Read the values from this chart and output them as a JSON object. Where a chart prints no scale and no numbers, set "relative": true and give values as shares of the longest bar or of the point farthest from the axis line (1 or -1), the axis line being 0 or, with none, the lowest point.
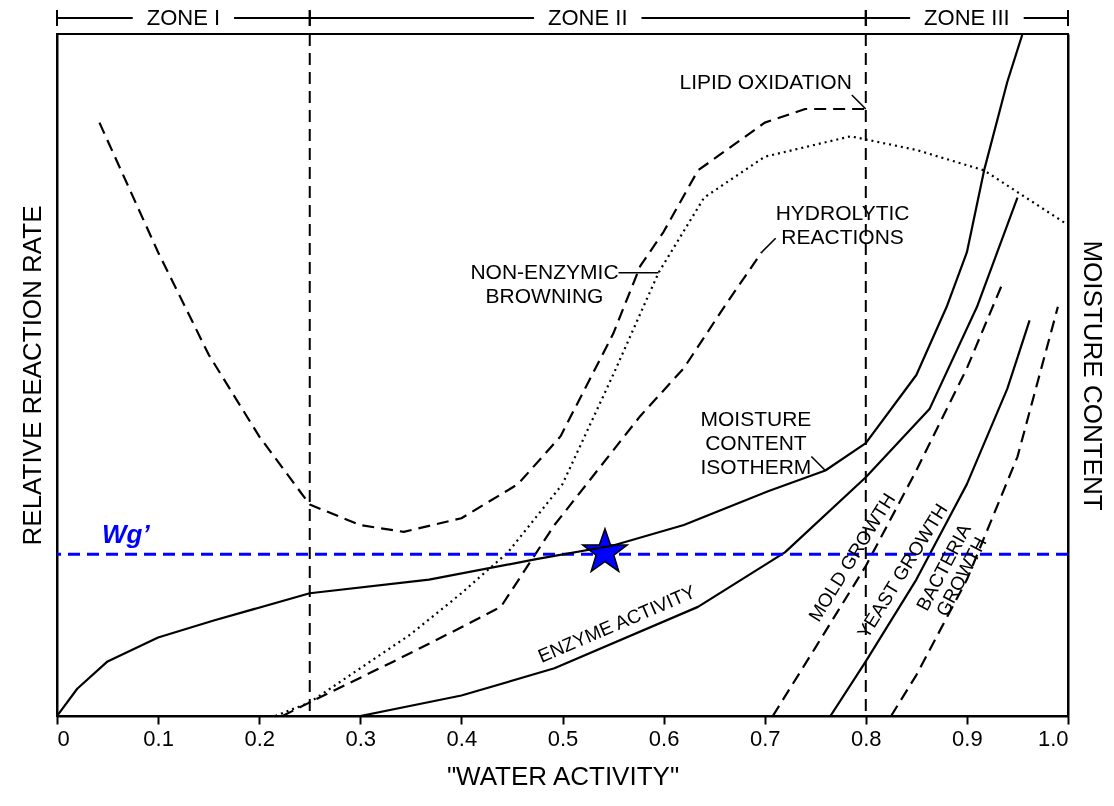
{
  "chart_data": {
    "type": "line",
    "relative": true,
    "xlabel": "\"WATER ACTIVITY\"",
    "ylabel": "RELATIVE REACTION RATE",
    "y2label": "MOISTURE CONTENT",
    "xlim": [
      0,
      1.0
    ],
    "xticks": [
      0,
      0.1,
      0.2,
      0.3,
      0.4,
      0.5,
      0.6,
      0.7,
      0.8,
      0.9,
      {
        "value": 1,
        "label": "1.0"
      }
    ],
    "grid": false,
    "series": [
      {
        "axis": "y2",
        "color": "#000000",
        "line_style": "solid",
        "x": [
          0,
          0.02,
          0.05,
          0.1,
          0.155,
          0.25,
          0.368,
          0.474,
          0.55,
          0.62,
          0.704,
          0.76,
          0.8,
          0.85,
          0.88,
          0.9,
          0.917,
          0.94,
          0.955
        ],
        "values": [
          0,
          0.04,
          0.08,
          0.115,
          0.14,
          0.18,
          0.2,
          0.23,
          0.25,
          0.28,
          0.33,
          0.36,
          0.4,
          0.5,
          0.6,
          0.68,
          0.8,
          0.93,
          1.0
        ]
      },
      {
        "color": "#000000",
        "line_style": "dashed",
        "x": [
          0.042,
          0.1,
          0.15,
          0.2,
          0.25,
          0.3,
          0.343,
          0.4,
          0.456,
          0.498,
          0.55,
          0.577,
          0.6,
          0.634,
          0.7,
          0.74,
          0.8
        ],
        "values": [
          0.87,
          0.68,
          0.53,
          0.41,
          0.31,
          0.28,
          0.27,
          0.29,
          0.34,
          0.41,
          0.56,
          0.66,
          0.71,
          0.8,
          0.87,
          0.89,
          0.89
        ]
      },
      {
        "color": "#000000",
        "line_style": "dotted",
        "x": [
          0.216,
          0.25,
          0.3,
          0.35,
          0.4,
          0.446,
          0.5,
          0.55,
          0.595,
          0.64,
          0.7,
          0.785,
          0.85,
          0.917,
          1.0
        ],
        "values": [
          0,
          0.02,
          0.07,
          0.12,
          0.18,
          0.24,
          0.34,
          0.5,
          0.65,
          0.76,
          0.82,
          0.85,
          0.83,
          0.8,
          0.72
        ]
      },
      {
        "color": "#000000",
        "line_style": "dashed",
        "x": [
          0.223,
          0.25,
          0.333,
          0.4,
          0.439,
          0.492,
          0.577,
          0.62,
          0.66,
          0.697
        ],
        "values": [
          0,
          0.02,
          0.08,
          0.13,
          0.16,
          0.28,
          0.44,
          0.51,
          0.6,
          0.68
        ]
      },
      {
        "color": "#000000",
        "line_style": "solid",
        "x": [
          0.3,
          0.4,
          0.492,
          0.634,
          0.72,
          0.8,
          0.863,
          0.91,
          0.95
        ],
        "values": [
          0,
          0.03,
          0.07,
          0.16,
          0.24,
          0.35,
          0.45,
          0.6,
          0.76
        ]
      },
      {
        "color": "#000000",
        "line_style": "dashed",
        "x": [
          0.708,
          0.75,
          0.8,
          0.85,
          0.9,
          0.934
        ],
        "values": [
          0,
          0.1,
          0.22,
          0.36,
          0.51,
          0.63
        ]
      },
      {
        "color": "#000000",
        "line_style": "solid",
        "x": [
          0.765,
          0.8,
          0.85,
          0.9,
          0.94,
          0.962
        ],
        "values": [
          0,
          0.08,
          0.2,
          0.34,
          0.48,
          0.58
        ]
      },
      {
        "color": "#000000",
        "line_style": "dashed",
        "x": [
          0.825,
          0.85,
          0.9,
          0.95,
          0.99
        ],
        "values": [
          0,
          0.06,
          0.2,
          0.38,
          0.6
        ]
      },
      {
        "type": "scatter",
        "marker": "star",
        "color": "#0000ff",
        "x": [
          0.542
        ],
        "values": [
          0.24
        ]
      }
    ],
    "ref_lines": [
      {
        "axis": "y",
        "value": 0.237,
        "label": "Wg’",
        "color": "#0000ff",
        "line_style": "dashed"
      },
      {
        "axis": "x",
        "value": 0.25,
        "line_style": "dashed"
      },
      {
        "axis": "x",
        "value": 0.8,
        "line_style": "dashed"
      }
    ],
    "annotations": [
      "ZONE I",
      "ZONE II",
      "ZONE III",
      {
        "text": "LIPID OXIDATION",
        "x": 0.8,
        "y": 0.89
      },
      {
        "text": "HYDROLYTIC\nREACTIONS",
        "x": 0.697,
        "y": 0.68
      },
      {
        "text": "NON-ENZYMIC\nBROWNING",
        "x": 0.595,
        "y": 0.65
      },
      {
        "text": "MOISTURE\nCONTENT\nISOTHERM",
        "x": 0.76,
        "y": 0.36
      },
      {
        "text": "ENZYME ACTIVITY",
        "x": 0.56,
        "y": 0.113
      },
      {
        "text": "MOLD GROWTH",
        "x": 0.8,
        "y": 0.22
      },
      {
        "text": "YEAST GROWTH",
        "x": 0.85,
        "y": 0.2
      },
      {
        "text": "BACTERIA\nGROWTH",
        "x": 0.9,
        "y": 0.2
      }
    ]
  }
}
